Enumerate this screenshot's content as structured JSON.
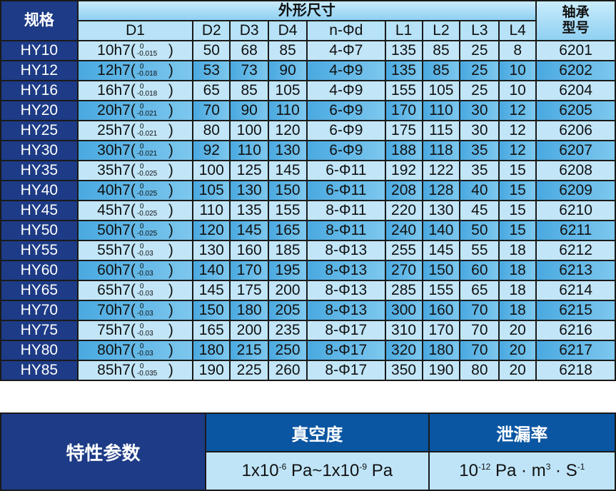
{
  "spec_table": {
    "header": {
      "spec": "规格",
      "dims": "外形尺寸",
      "bearing": "轴承型号",
      "columns": [
        "D1",
        "D2",
        "D3",
        "D4",
        "n-Φd",
        "L1",
        "L2",
        "L3",
        "L4"
      ]
    },
    "rows": [
      {
        "model": "HY10",
        "d1": "10h7",
        "tol_upper": "0",
        "tol_lower": "-0.015",
        "d2": "50",
        "d3": "68",
        "d4": "85",
        "nd": "4-Φ7",
        "l1": "135",
        "l2": "85",
        "l3": "25",
        "l4": "8",
        "bearing": "6201"
      },
      {
        "model": "HY12",
        "d1": "12h7",
        "tol_upper": "0",
        "tol_lower": "-0.018",
        "d2": "53",
        "d3": "73",
        "d4": "90",
        "nd": "4-Φ9",
        "l1": "135",
        "l2": "85",
        "l3": "25",
        "l4": "10",
        "bearing": "6202"
      },
      {
        "model": "HY16",
        "d1": "16h7",
        "tol_upper": "0",
        "tol_lower": "-0.018",
        "d2": "65",
        "d3": "85",
        "d4": "105",
        "nd": "4-Φ9",
        "l1": "155",
        "l2": "105",
        "l3": "25",
        "l4": "10",
        "bearing": "6204"
      },
      {
        "model": "HY20",
        "d1": "20h7",
        "tol_upper": "0",
        "tol_lower": "-0.021",
        "d2": "70",
        "d3": "90",
        "d4": "110",
        "nd": "6-Φ9",
        "l1": "170",
        "l2": "110",
        "l3": "30",
        "l4": "12",
        "bearing": "6205"
      },
      {
        "model": "HY25",
        "d1": "25h7",
        "tol_upper": "0",
        "tol_lower": "-0.021",
        "d2": "80",
        "d3": "100",
        "d4": "120",
        "nd": "6-Φ9",
        "l1": "175",
        "l2": "115",
        "l3": "30",
        "l4": "12",
        "bearing": "6206"
      },
      {
        "model": "HY30",
        "d1": "30h7",
        "tol_upper": "0",
        "tol_lower": "-0.021",
        "d2": "92",
        "d3": "110",
        "d4": "130",
        "nd": "6-Φ9",
        "l1": "188",
        "l2": "118",
        "l3": "35",
        "l4": "12",
        "bearing": "6207"
      },
      {
        "model": "HY35",
        "d1": "35h7",
        "tol_upper": "0",
        "tol_lower": "-0.025",
        "d2": "100",
        "d3": "125",
        "d4": "145",
        "nd": "6-Φ11",
        "l1": "192",
        "l2": "122",
        "l3": "35",
        "l4": "15",
        "bearing": "6208"
      },
      {
        "model": "HY40",
        "d1": "40h7",
        "tol_upper": "0",
        "tol_lower": "-0.025",
        "d2": "105",
        "d3": "130",
        "d4": "150",
        "nd": "6-Φ11",
        "l1": "208",
        "l2": "128",
        "l3": "40",
        "l4": "15",
        "bearing": "6209"
      },
      {
        "model": "HY45",
        "d1": "45h7",
        "tol_upper": "0",
        "tol_lower": "-0.025",
        "d2": "110",
        "d3": "135",
        "d4": "155",
        "nd": "8-Φ11",
        "l1": "220",
        "l2": "130",
        "l3": "45",
        "l4": "15",
        "bearing": "6210"
      },
      {
        "model": "HY50",
        "d1": "50h7",
        "tol_upper": "0",
        "tol_lower": "-0.025",
        "d2": "120",
        "d3": "145",
        "d4": "165",
        "nd": "8-Φ11",
        "l1": "240",
        "l2": "140",
        "l3": "50",
        "l4": "15",
        "bearing": "6211"
      },
      {
        "model": "HY55",
        "d1": "55h7",
        "tol_upper": "0",
        "tol_lower": "-0.03",
        "d2": "130",
        "d3": "160",
        "d4": "185",
        "nd": "8-Φ13",
        "l1": "255",
        "l2": "145",
        "l3": "55",
        "l4": "18",
        "bearing": "6212"
      },
      {
        "model": "HY60",
        "d1": "60h7",
        "tol_upper": "0",
        "tol_lower": "-0.03",
        "d2": "140",
        "d3": "170",
        "d4": "195",
        "nd": "8-Φ13",
        "l1": "270",
        "l2": "150",
        "l3": "60",
        "l4": "18",
        "bearing": "6213"
      },
      {
        "model": "HY65",
        "d1": "65h7",
        "tol_upper": "0",
        "tol_lower": "-0.03",
        "d2": "145",
        "d3": "175",
        "d4": "200",
        "nd": "8-Φ13",
        "l1": "285",
        "l2": "155",
        "l3": "65",
        "l4": "18",
        "bearing": "6214"
      },
      {
        "model": "HY70",
        "d1": "70h7",
        "tol_upper": "0",
        "tol_lower": "-0.03",
        "d2": "150",
        "d3": "180",
        "d4": "205",
        "nd": "8-Φ13",
        "l1": "300",
        "l2": "160",
        "l3": "70",
        "l4": "18",
        "bearing": "6215"
      },
      {
        "model": "HY75",
        "d1": "75h7",
        "tol_upper": "0",
        "tol_lower": "-0.03",
        "d2": "165",
        "d3": "200",
        "d4": "235",
        "nd": "8-Φ17",
        "l1": "310",
        "l2": "170",
        "l3": "70",
        "l4": "20",
        "bearing": "6216"
      },
      {
        "model": "HY80",
        "d1": "80h7",
        "tol_upper": "0",
        "tol_lower": "-0.03",
        "d2": "180",
        "d3": "215",
        "d4": "250",
        "nd": "8-Φ17",
        "l1": "320",
        "l2": "180",
        "l3": "70",
        "l4": "20",
        "bearing": "6217"
      },
      {
        "model": "HY85",
        "d1": "85h7",
        "tol_upper": "0",
        "tol_lower": "-0.035",
        "d2": "190",
        "d3": "225",
        "d4": "260",
        "nd": "8-Φ17",
        "l1": "350",
        "l2": "190",
        "l3": "80",
        "l4": "20",
        "bearing": "6218"
      }
    ]
  },
  "properties": {
    "label": "特性参数",
    "vacuum": {
      "header": "真空度",
      "value_a": "1x10",
      "exp_a": "-6",
      "unit_a": " Pa~1x10",
      "exp_b": "-9",
      "unit_b": " Pa"
    },
    "leak": {
      "header": "泄漏率",
      "base": "10",
      "exp": "-12",
      "unit_mid": " Pa · m",
      "exp_m": "3",
      "unit_end": " · S",
      "exp_s": "-1"
    }
  },
  "colors": {
    "navy": "#1d3b86",
    "header_blue": "#0b56a2",
    "light_blue": "#c2e6f8",
    "mid_blue": "#4aa9e0"
  }
}
